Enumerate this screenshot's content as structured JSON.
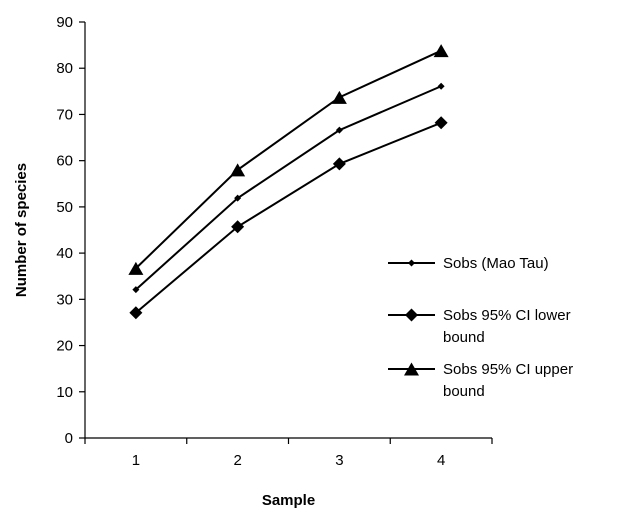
{
  "chart_data": {
    "type": "line",
    "title": "",
    "xlabel": "Sample",
    "ylabel": "Number of species",
    "categories": [
      "1",
      "2",
      "3",
      "4"
    ],
    "ylim": [
      0,
      90
    ],
    "yticks": [
      "0",
      "10",
      "20",
      "30",
      "40",
      "50",
      "60",
      "70",
      "80",
      "90"
    ],
    "grid": false,
    "legend_position": "right",
    "series": [
      {
        "name": "Sobs (Mao Tau)",
        "marker": "small-diamond",
        "color": "#000000",
        "values": [
          32.1,
          51.9,
          66.6,
          76.1
        ]
      },
      {
        "name": "Sobs 95% CI lower bound",
        "marker": "diamond",
        "color": "#000000",
        "values": [
          27.1,
          45.7,
          59.3,
          68.2
        ]
      },
      {
        "name": "Sobs 95% CI upper bound",
        "marker": "triangle",
        "color": "#000000",
        "values": [
          36.7,
          58.0,
          73.7,
          83.8
        ]
      }
    ],
    "legend": [
      {
        "lines": [
          "Sobs (Mao Tau)"
        ]
      },
      {
        "lines": [
          "Sobs 95% CI lower",
          "bound"
        ]
      },
      {
        "lines": [
          "Sobs 95% CI upper",
          "bound"
        ]
      }
    ]
  }
}
